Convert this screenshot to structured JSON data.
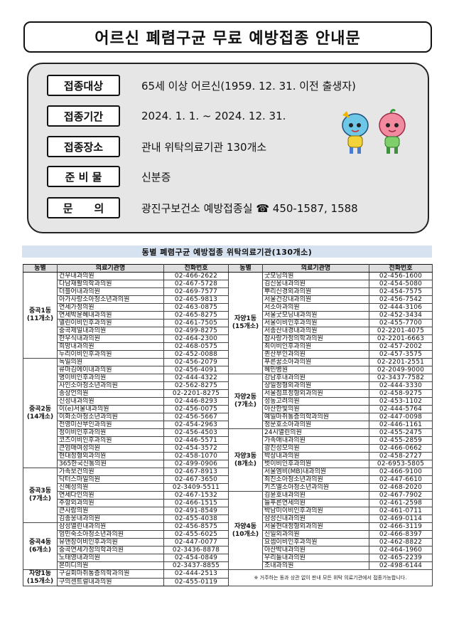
{
  "title": "어르신 폐렴구균 무료 예방접종 안내문",
  "info": [
    {
      "label": "접종대상",
      "value": "65세 이상 어르신(1959. 12. 31. 이전 출생자)"
    },
    {
      "label": "접종기간",
      "value": "2024. 1. 1. ~ 2024. 12. 31."
    },
    {
      "label": "접종장소",
      "value": "관내 위탁의료기관 130개소"
    },
    {
      "label": "준 비 물",
      "value": "신분증"
    },
    {
      "label": "문　　의",
      "value": "광진구보건소 예방접종실 ☎ 450-1587, 1588"
    }
  ],
  "table_title": "동별 폐렴구균 예방접종 위탁의료기관(130개소)",
  "headers": {
    "dong": "동별",
    "clinic": "의료기관명",
    "phone": "전화번호"
  },
  "left_groups": [
    {
      "dong": "중곡1동\n(11개소)",
      "rows": [
        [
          "건우내과의원",
          "02-466-2622"
        ],
        [
          "다남재활의학과의원",
          "02-467-5728"
        ],
        [
          "더블어내과의원",
          "02-469-7577"
        ],
        [
          "아가사랑소아청소년과의원",
          "02-465-9813"
        ],
        [
          "연세가정의원",
          "02-463-0875"
        ],
        [
          "연세박윤혜내과의원",
          "02-465-8275"
        ],
        [
          "열린이비인후과의원",
          "02-461-7505"
        ],
        [
          "중곡제일내과의원",
          "02-499-8275"
        ],
        [
          "한우식내과의원",
          "02-464-2300"
        ],
        [
          "희망내과의원",
          "02-468-0575"
        ],
        [
          "누리이비인후과의원",
          "02-452-0088"
        ]
      ]
    },
    {
      "dong": "중곡2동\n(14개소)",
      "rows": [
        [
          "독일의원",
          "02-456-2079"
        ],
        [
          "류마김에이내과의원",
          "02-456-4091"
        ],
        [
          "명이비인후과의원",
          "02-444-4322"
        ],
        [
          "사인소아청소년과의원",
          "02-562-8275"
        ],
        [
          "송상언의원",
          "02-2201-8275"
        ],
        [
          "신성내과의원",
          "02-446-8293"
        ],
        [
          "이(e)서울내과의원",
          "02-456-0075"
        ],
        [
          "이화소아청소년과의원",
          "02-456-5667"
        ],
        [
          "전영미산부인과의원",
          "02-454-2963"
        ],
        [
          "정이비인후과의원",
          "02-456-4503"
        ],
        [
          "코즈이비인후과의원",
          "02-446-5571"
        ],
        [
          "큰엄매여성의원",
          "02-454-3572"
        ],
        [
          "현대정형외과의원",
          "02-458-1070"
        ],
        [
          "365한국신통의원",
          "02-499-0906"
        ]
      ]
    },
    {
      "dong": "중곡3동\n(7개소)",
      "rows": [
        [
          "가족보건의원",
          "02-467-8913"
        ],
        [
          "닥터스마일의원",
          "02-467-3650"
        ],
        [
          "신혜성의원",
          "02-3409-5511"
        ],
        [
          "연세다인의원",
          "02-467-1532"
        ],
        [
          "주항외과의원",
          "02-466-1515"
        ],
        [
          "큰사람의원",
          "02-491-8549"
        ],
        [
          "김종웅내과의원",
          "02-455-4038"
        ]
      ]
    },
    {
      "dong": "중곡4동\n(6개소)",
      "rows": [
        [
          "삼성열린내과의원",
          "02-456-8575"
        ],
        [
          "엄민숙소아청소년과의원",
          "02-455-6025"
        ],
        [
          "유앤장이비인후과의원",
          "02-447-0077"
        ],
        [
          "중곡연세가정의학과의원",
          "02-3436-8878"
        ],
        [
          "노태영내과의원",
          "02-454-0849"
        ],
        [
          "본미디의원",
          "02-3437-8855"
        ]
      ]
    },
    {
      "dong": "자양1동\n(15개소)",
      "rows": [
        [
          "구길회마취통증의학과의원",
          "02-444-2513"
        ],
        [
          "구의센트럴내과의원",
          "02-455-0119"
        ]
      ]
    }
  ],
  "right_groups": [
    {
      "dong": "자양1동\n(15개소)",
      "rows": [
        [
          "굿모닝의원",
          "02-456-1600"
        ],
        [
          "김신웅내과의원",
          "02-454-5080"
        ],
        [
          "뿌리신경외과의원",
          "02-454-7575"
        ],
        [
          "서울건강내과의원",
          "02-456-7542"
        ],
        [
          "서소아과의원",
          "02-444-3106"
        ],
        [
          "서울굿모닝내과의원",
          "02-452-3434"
        ],
        [
          "서울이비인후과의원",
          "02-455-7700"
        ],
        [
          "서종산내경내과의원",
          "02-2201-4075"
        ],
        [
          "참사랑가정의학과의원",
          "02-2201-6663"
        ],
        [
          "최이비인후과의원",
          "02-457-2002"
        ],
        [
          "퀸산부인과의원",
          "02-457-3575"
        ],
        [
          "푸른꿈소아과의원",
          "02-2201-2551"
        ],
        [
          "혜민병원",
          "02-2049-9000"
        ]
      ]
    },
    {
      "dong": "자양2동\n(7개소)",
      "rows": [
        [
          "강남후내과의원",
          "02-3437-7582"
        ],
        [
          "상일정형외과의원",
          "02-444-3330"
        ],
        [
          "서울점프정형외과의원",
          "02-458-9275"
        ],
        [
          "성동고려의원",
          "02-453-1102"
        ],
        [
          "아산한빛의원",
          "02-444-5764"
        ],
        [
          "예일마취통증의학과의원",
          "02-447-0098"
        ],
        [
          "정문호소아과의원",
          "02-446-1161"
        ]
      ]
    },
    {
      "dong": "자양3동\n(8개소)",
      "rows": [
        [
          "24시열린의원",
          "02-455-2475"
        ],
        [
          "가족애내과의원",
          "02-455-2859"
        ],
        [
          "광진성모의원",
          "02-466-0662"
        ],
        [
          "박상내과의원",
          "02-458-2727"
        ],
        [
          "벗이비인후과의원",
          "02-6953-5805"
        ],
        [
          "서울엠비(MB)내과의원",
          "02-466-9100"
        ],
        [
          "최진소아청소년과의원",
          "02-447-6610"
        ],
        [
          "키즈엘소아청소년과의원",
          "02-468-2020"
        ]
      ]
    },
    {
      "dong": "자양4동\n(10개소)",
      "rows": [
        [
          "김윤호내과의원",
          "02-467-7902"
        ],
        [
          "늘푸른연세의원",
          "02-461-2598"
        ],
        [
          "박남미이비인후과의원",
          "02-461-0711"
        ],
        [
          "삼성신내과의원",
          "02-469-0114"
        ],
        [
          "서울현대정형외과의원",
          "02-466-3119"
        ],
        [
          "신일외과의원",
          "02-466-8397"
        ],
        [
          "요셉이비인후과의원",
          "02-462-8822"
        ],
        [
          "아산박내과의원",
          "02-464-1960"
        ],
        [
          "우리들내과의원",
          "02-465-2239"
        ],
        [
          "조내과의원",
          "02-498-6144"
        ]
      ]
    }
  ],
  "note": "※ 거주하는 동과 상관 없이 판내 모든 위탁 의료기관에서 접종가능합니다.",
  "colors": {
    "banner": "#d7e2f0",
    "info_bg": "#e6e6e6",
    "header_bg": "#dedede"
  }
}
